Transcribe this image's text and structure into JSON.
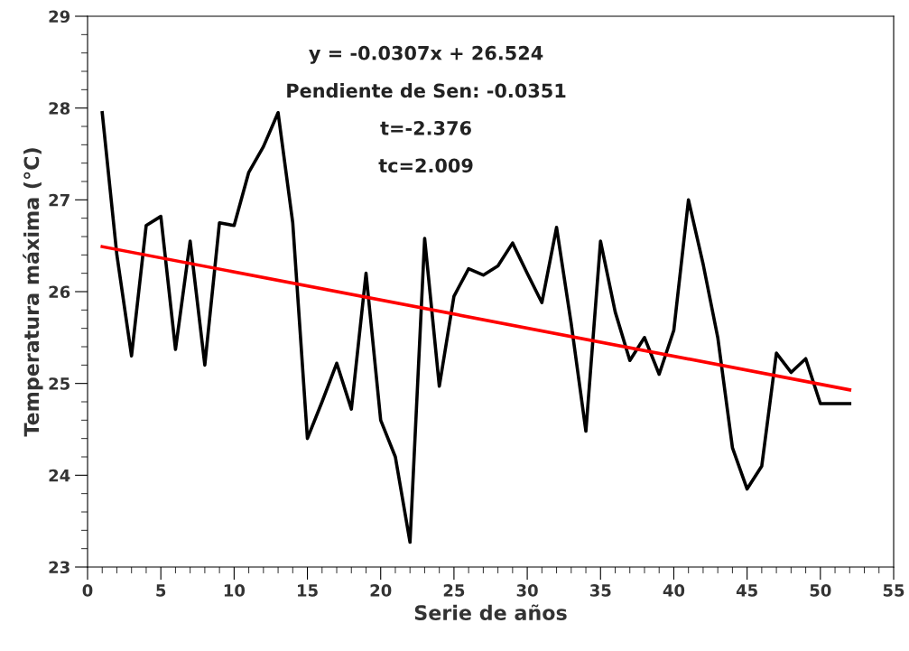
{
  "chart_data": {
    "type": "line",
    "xlabel": "Serie de años",
    "ylabel": "Temperatura máxima (°C)",
    "xlim": [
      0,
      55
    ],
    "xticks": [
      0,
      5,
      10,
      15,
      20,
      25,
      30,
      35,
      40,
      45,
      50,
      55
    ],
    "ylim": [
      23,
      29
    ],
    "yticks": [
      23,
      24,
      25,
      26,
      27,
      28,
      29
    ],
    "grid": false,
    "legend": false,
    "marker": "none",
    "line_style": "solid",
    "annotations": [
      "y = -0.0307x + 26.524",
      "Pendiente de Sen: -0.0351",
      "t=-2.376",
      "tc=2.009"
    ],
    "series": [
      {
        "color": "#000000",
        "x": [
          1,
          2,
          3,
          4,
          5,
          6,
          7,
          8,
          9,
          10,
          11,
          12,
          13,
          14,
          15,
          16,
          17,
          18,
          19,
          20,
          21,
          22,
          23,
          24,
          25,
          26,
          27,
          28,
          29,
          30,
          31,
          32,
          33,
          34,
          35,
          36,
          37,
          38,
          39,
          40,
          41,
          42,
          43,
          44,
          45,
          46,
          47,
          48,
          49,
          50,
          51,
          52
        ],
        "values": [
          27.95,
          26.4,
          25.3,
          26.72,
          26.82,
          25.37,
          26.55,
          25.2,
          26.75,
          26.72,
          27.3,
          27.58,
          27.95,
          26.75,
          24.4,
          24.8,
          25.22,
          24.72,
          26.2,
          24.6,
          24.2,
          23.27,
          26.58,
          24.97,
          25.95,
          26.25,
          26.18,
          26.28,
          26.53,
          26.2,
          25.88,
          26.7,
          25.65,
          24.48,
          26.55,
          25.78,
          25.25,
          25.5,
          25.1,
          25.58,
          27.0,
          26.3,
          25.5,
          24.3,
          23.85,
          24.1,
          25.33,
          25.12,
          25.27,
          24.78,
          24.78,
          24.78
        ]
      },
      {
        "type": "line",
        "color": "#ff0000",
        "x": [
          1,
          52
        ],
        "values": [
          26.49,
          24.93
        ]
      }
    ]
  }
}
